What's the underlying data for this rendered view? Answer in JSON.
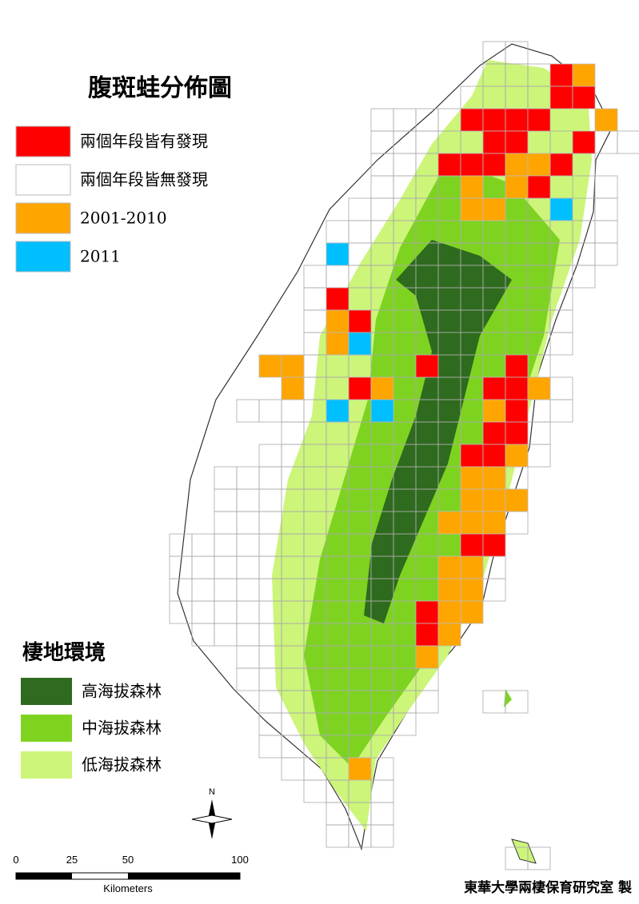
{
  "title": "腹斑蛙分佈圖",
  "legend": [
    {
      "label": "兩個年段皆有發現",
      "color": "#ff0000"
    },
    {
      "label": "兩個年段皆無發現",
      "color": "#ffffff"
    },
    {
      "label": "2001-2010",
      "color": "#ffa500"
    },
    {
      "label": "2011",
      "color": "#00bfff"
    }
  ],
  "habitat": {
    "title": "棲地環境",
    "items": [
      {
        "label": "高海拔森林",
        "color": "#2e6b1e"
      },
      {
        "label": "中海拔森林",
        "color": "#7ed321"
      },
      {
        "label": "低海拔森林",
        "color": "#ccf57a"
      }
    ]
  },
  "scale": {
    "ticks": [
      "0",
      "25",
      "50",
      "100"
    ],
    "unit": "Kilometers"
  },
  "north": "N",
  "credit": "東華大學兩棲保育研究室 製"
}
